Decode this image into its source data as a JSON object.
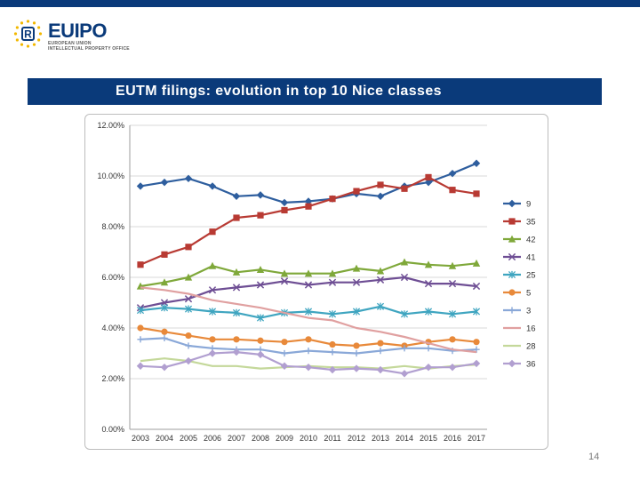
{
  "colors": {
    "top_bar": "#0a3a7a",
    "title_bg": "#0a3a7a",
    "logo_blue": "#0a3a7a",
    "logo_star": "#f2b800"
  },
  "logo": {
    "wordmark_prefix": "EU",
    "wordmark_suffix": "IPO",
    "subtitle_line1": "EUROPEAN UNION",
    "subtitle_line2": "INTELLECTUAL PROPERTY OFFICE"
  },
  "title": "EUTM filings: evolution in top 10 Nice classes",
  "page_number": "14",
  "chart_data": {
    "type": "line",
    "x": [
      "2003",
      "2004",
      "2005",
      "2006",
      "2007",
      "2008",
      "2009",
      "2010",
      "2011",
      "2012",
      "2013",
      "2014",
      "2015",
      "2016",
      "2017"
    ],
    "y_ticks": [
      "0.00%",
      "2.00%",
      "4.00%",
      "6.00%",
      "8.00%",
      "10.00%",
      "12.00%"
    ],
    "ylim": [
      0,
      12
    ],
    "grid": "horizontal",
    "legend_position": "right",
    "series": [
      {
        "name": "9",
        "color": "#2e5e9e",
        "marker": "diamond",
        "values": [
          9.6,
          9.75,
          9.9,
          9.6,
          9.2,
          9.25,
          8.95,
          9.0,
          9.1,
          9.3,
          9.2,
          9.6,
          9.75,
          10.1,
          10.5
        ]
      },
      {
        "name": "35",
        "color": "#b83a33",
        "marker": "square",
        "values": [
          6.5,
          6.9,
          7.2,
          7.8,
          8.35,
          8.45,
          8.65,
          8.8,
          9.1,
          9.4,
          9.65,
          9.5,
          9.95,
          9.45,
          9.3
        ]
      },
      {
        "name": "42",
        "color": "#7fa83a",
        "marker": "triangle",
        "values": [
          5.65,
          5.8,
          6.0,
          6.45,
          6.2,
          6.3,
          6.15,
          6.15,
          6.15,
          6.35,
          6.25,
          6.6,
          6.5,
          6.45,
          6.55
        ]
      },
      {
        "name": "41",
        "color": "#6e4e94",
        "marker": "x",
        "values": [
          4.8,
          5.0,
          5.15,
          5.5,
          5.6,
          5.7,
          5.85,
          5.7,
          5.8,
          5.8,
          5.9,
          6.0,
          5.75,
          5.75,
          5.65
        ]
      },
      {
        "name": "25",
        "color": "#3fa5c0",
        "marker": "star",
        "values": [
          4.7,
          4.8,
          4.75,
          4.65,
          4.6,
          4.4,
          4.6,
          4.65,
          4.55,
          4.65,
          4.85,
          4.55,
          4.65,
          4.55,
          4.65
        ]
      },
      {
        "name": "5",
        "color": "#e8893a",
        "marker": "circle",
        "values": [
          4.0,
          3.85,
          3.7,
          3.55,
          3.55,
          3.5,
          3.45,
          3.55,
          3.35,
          3.3,
          3.4,
          3.3,
          3.45,
          3.55,
          3.45
        ]
      },
      {
        "name": "3",
        "color": "#8aa8d8",
        "marker": "plus",
        "values": [
          3.55,
          3.6,
          3.3,
          3.2,
          3.15,
          3.15,
          3.0,
          3.1,
          3.05,
          3.0,
          3.1,
          3.2,
          3.2,
          3.1,
          3.15
        ]
      },
      {
        "name": "16",
        "color": "#e0a0a0",
        "marker": "none",
        "values": [
          5.6,
          5.5,
          5.35,
          5.1,
          4.95,
          4.8,
          4.6,
          4.4,
          4.3,
          4.0,
          3.85,
          3.65,
          3.4,
          3.15,
          3.05
        ]
      },
      {
        "name": "28",
        "color": "#c4d89a",
        "marker": "none",
        "values": [
          2.7,
          2.8,
          2.7,
          2.5,
          2.5,
          2.4,
          2.45,
          2.5,
          2.45,
          2.45,
          2.4,
          2.5,
          2.4,
          2.5,
          2.55
        ]
      },
      {
        "name": "36",
        "color": "#b19fd0",
        "marker": "diamond",
        "values": [
          2.5,
          2.45,
          2.7,
          3.0,
          3.05,
          2.95,
          2.5,
          2.45,
          2.35,
          2.4,
          2.35,
          2.2,
          2.45,
          2.45,
          2.6
        ]
      }
    ]
  }
}
